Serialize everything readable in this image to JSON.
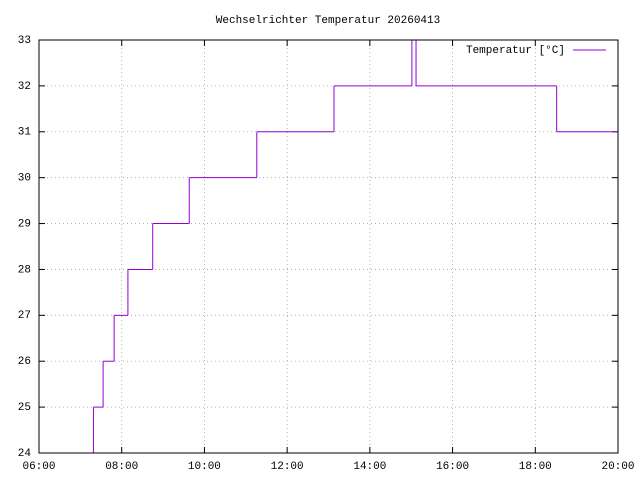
{
  "chart_data": {
    "type": "line",
    "title": "Wechselrichter Temperatur 20260413",
    "line_style": "steps",
    "x": [
      "07:18",
      "07:19",
      "07:33",
      "07:49",
      "08:09",
      "08:45",
      "09:38",
      "11:16",
      "13:08",
      "15:01",
      "15:07",
      "18:31",
      "20:00"
    ],
    "series": [
      {
        "name": "Temperatur [°C]",
        "color": "#9400d3",
        "values": [
          24,
          25,
          26,
          27,
          28,
          29,
          30,
          31,
          32,
          33,
          32,
          31,
          31
        ]
      }
    ],
    "xlim": [
      "06:00",
      "20:00"
    ],
    "xticks": [
      "06:00",
      "08:00",
      "10:00",
      "12:00",
      "14:00",
      "16:00",
      "18:00",
      "20:00"
    ],
    "ylim": [
      24,
      33
    ],
    "yticks": [
      24,
      25,
      26,
      27,
      28,
      29,
      30,
      31,
      32,
      33
    ],
    "grid": true,
    "legend": "top-right"
  }
}
